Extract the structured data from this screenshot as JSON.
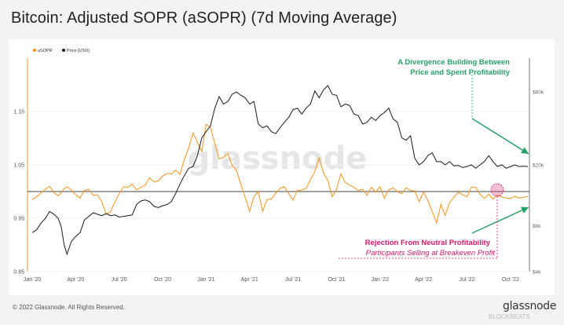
{
  "title": "Bitcoin: Adjusted SOPR (aSOPR) (7d Moving Average)",
  "footer": "© 2022 Glassnode. All Rights Reserved.",
  "brand": "glassnode",
  "brand_sub": "BLOCKBEATS",
  "watermark": "glassnode",
  "colors": {
    "asopr": "#f7931a",
    "price": "#1a1a1a",
    "green": "#27a06a",
    "red": "#d0186a"
  },
  "chart_data": {
    "type": "line",
    "legend": [
      {
        "name": "aSOPR",
        "color": "#f7931a"
      },
      {
        "name": "Price [USD]",
        "color": "#1a1a1a"
      }
    ],
    "x_ticks": [
      "Jan '20",
      "Apr '20",
      "Jul '20",
      "Oct '20",
      "Jan '21",
      "Apr '21",
      "Jul '21",
      "Oct '21",
      "Jan '22",
      "Apr '22",
      "Jul '22",
      "Oct '22"
    ],
    "y_left": {
      "ticks": [
        "1.15",
        "1.05",
        "0.95",
        "0.85"
      ],
      "values": [
        1.15,
        1.05,
        0.95,
        0.85
      ],
      "range": [
        0.85,
        1.25
      ]
    },
    "y_right": {
      "ticks": [
        "$60k",
        "$20k",
        "$8k",
        "$4k"
      ],
      "values": [
        60000,
        20000,
        8000,
        4000
      ],
      "scale": "log",
      "range": [
        4000,
        100000
      ]
    },
    "reference_line": 1.0,
    "series": [
      {
        "name": "aSOPR",
        "x": [
          0,
          0.3,
          0.6,
          0.9,
          1.2,
          1.5,
          1.8,
          2.0,
          2.2,
          2.4,
          2.7,
          3.0,
          3.3,
          3.6,
          3.9,
          4.2,
          4.5,
          4.8,
          5.1,
          5.4,
          5.7,
          6.0,
          6.3,
          6.6,
          6.9,
          7.2,
          7.5,
          7.8,
          8.1,
          8.4,
          8.7,
          9.0,
          9.3,
          9.6,
          9.9,
          10.2,
          10.5,
          10.8,
          11.1,
          11.4,
          11.7,
          12.0,
          12.3,
          12.6,
          12.9,
          13.2,
          13.5,
          13.8,
          14.1,
          14.4,
          14.7,
          15.0,
          15.3,
          15.6,
          15.9,
          16.2,
          16.5,
          16.8,
          17.1,
          17.4,
          17.7,
          18.0,
          18.3,
          18.6,
          18.9,
          19.2,
          19.5,
          19.8,
          20.1,
          20.4,
          20.7,
          21.0,
          21.3,
          21.6,
          21.9,
          22.2,
          22.5,
          22.8,
          23.1,
          23.4,
          23.7,
          24.0,
          24.3,
          24.6,
          24.9,
          25.2,
          25.5,
          25.8,
          26.1,
          26.4,
          26.7,
          27.0,
          27.3,
          27.6,
          27.9,
          28.2,
          28.5,
          28.8,
          29.1,
          29.4,
          29.7,
          30.0,
          30.3,
          30.6,
          30.9,
          31.2,
          31.5,
          31.8,
          32.1,
          32.4,
          32.7,
          33.0,
          33.3,
          33.6,
          33.9,
          34.2
        ],
        "values": [
          0.985,
          0.99,
          0.997,
          1.004,
          1.01,
          0.998,
          0.992,
          0.998,
          1.005,
          1.009,
          1.003,
          0.994,
          0.988,
          1.002,
          1.004,
          0.993,
          0.994,
          0.981,
          0.957,
          0.962,
          0.98,
          0.996,
          1.009,
          1.008,
          1.014,
          1.003,
          1.008,
          1.012,
          1.026,
          1.018,
          1.02,
          1.029,
          1.034,
          1.033,
          1.04,
          1.032,
          1.06,
          1.082,
          1.11,
          1.092,
          1.075,
          1.126,
          1.12,
          1.09,
          1.061,
          1.064,
          1.071,
          1.049,
          1.04,
          1.013,
          0.989,
          0.963,
          0.99,
          1.0,
          0.963,
          0.985,
          0.986,
          0.997,
          1.006,
          1.009,
          0.996,
          0.984,
          1.002,
          1.003,
          1.006,
          1.022,
          1.038,
          1.063,
          1.034,
          1.021,
          0.99,
          1.004,
          1.033,
          1.017,
          1.012,
          1.008,
          1.002,
          1.004,
          0.993,
          1.008,
          0.999,
          1.009,
          0.988,
          1.003,
          1.007,
          1.0,
          0.996,
          1.007,
          1.002,
          1.001,
          0.981,
          0.999,
          0.983,
          0.963,
          0.941,
          0.976,
          0.955,
          0.98,
          0.989,
          0.999,
          0.994,
          0.99,
          1.008,
          1.008,
          0.995,
          0.987,
          0.995,
          0.986,
          0.993,
          0.99,
          0.988,
          0.987,
          0.991,
          0.988,
          0.989,
          0.991
        ]
      },
      {
        "name": "Price [USD]",
        "x": [
          0,
          0.3,
          0.6,
          0.9,
          1.2,
          1.5,
          1.8,
          2.0,
          2.2,
          2.4,
          2.7,
          3.0,
          3.3,
          3.6,
          3.9,
          4.2,
          4.5,
          4.8,
          5.1,
          5.4,
          5.7,
          6.0,
          6.3,
          6.6,
          6.9,
          7.2,
          7.5,
          7.8,
          8.1,
          8.4,
          8.7,
          9.0,
          9.3,
          9.6,
          9.9,
          10.2,
          10.5,
          10.8,
          11.1,
          11.4,
          11.7,
          12.0,
          12.3,
          12.6,
          12.9,
          13.2,
          13.5,
          13.8,
          14.1,
          14.4,
          14.7,
          15.0,
          15.3,
          15.6,
          15.9,
          16.2,
          16.5,
          16.8,
          17.1,
          17.4,
          17.7,
          18.0,
          18.3,
          18.6,
          18.9,
          19.2,
          19.5,
          19.8,
          20.1,
          20.4,
          20.7,
          21.0,
          21.3,
          21.6,
          21.9,
          22.2,
          22.5,
          22.8,
          23.1,
          23.4,
          23.7,
          24.0,
          24.3,
          24.6,
          24.9,
          25.2,
          25.5,
          25.8,
          26.1,
          26.4,
          26.7,
          27.0,
          27.3,
          27.6,
          27.9,
          28.2,
          28.5,
          28.8,
          29.1,
          29.4,
          29.7,
          30.0,
          30.3,
          30.6,
          30.9,
          31.2,
          31.5,
          31.8,
          32.1,
          32.4,
          32.7,
          33.0,
          33.3,
          33.6,
          33.9,
          34.2
        ],
        "values": [
          7200,
          7500,
          8300,
          8900,
          9900,
          9500,
          8900,
          7900,
          6000,
          5200,
          6300,
          6800,
          7200,
          8700,
          9200,
          9700,
          9500,
          9300,
          9600,
          9300,
          9400,
          9100,
          9200,
          9300,
          9400,
          11000,
          11600,
          11800,
          11500,
          10700,
          10500,
          10800,
          11000,
          11500,
          13000,
          15000,
          17000,
          19000,
          19500,
          23000,
          30000,
          33000,
          36000,
          47000,
          56000,
          50000,
          52000,
          58000,
          60000,
          57000,
          55000,
          50000,
          52000,
          37000,
          35000,
          36000,
          33000,
          32000,
          35000,
          38000,
          41000,
          46000,
          47000,
          43000,
          47000,
          50000,
          61000,
          55000,
          62000,
          66000,
          58000,
          57000,
          48000,
          50000,
          49000,
          43000,
          42000,
          37000,
          38000,
          41000,
          39000,
          42000,
          44000,
          47000,
          40000,
          38000,
          30000,
          29000,
          31000,
          22000,
          20000,
          21000,
          23000,
          24000,
          21000,
          21000,
          20000,
          21000,
          19700,
          19800,
          19200,
          19500,
          20000,
          19000,
          20000,
          21000,
          23000,
          21000,
          19500,
          20000,
          19000,
          19500,
          20000,
          19500,
          19600,
          19500
        ]
      }
    ],
    "annotations": {
      "divergence": [
        "A Divergence Building Between",
        "Price and Spent Profitability"
      ],
      "rejection_title": "Rejection From Neutral Profitability",
      "rejection_sub": "Participants Selling at Breakeven Profit"
    }
  }
}
